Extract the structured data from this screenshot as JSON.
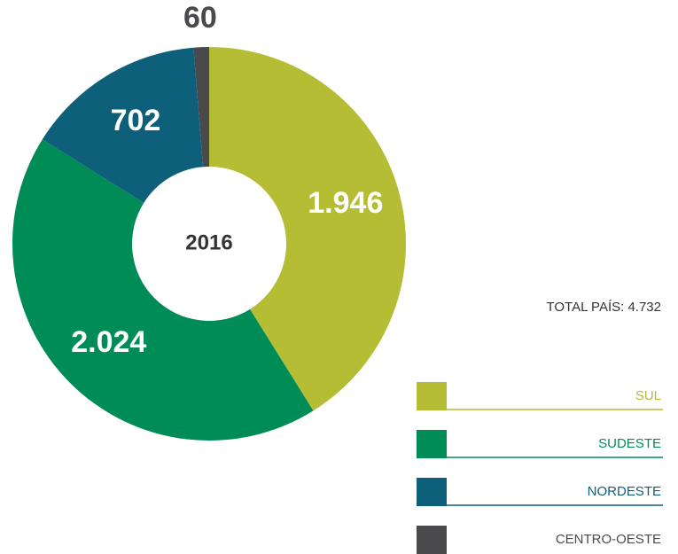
{
  "chart_data": {
    "type": "donut",
    "center_label": "2016",
    "annotation": "TOTAL PAÍS: 4.732",
    "categories": [
      "SUL",
      "SUDESTE",
      "NORDESTE",
      "CENTRO-OESTE"
    ],
    "values": [
      1946,
      2024,
      702,
      60
    ],
    "value_labels": [
      "1.946",
      "2.024",
      "702",
      "60"
    ],
    "colors": [
      "#b5bd35",
      "#008c56",
      "#0d5f7a",
      "#4a4a4d"
    ],
    "legend": "bottom-right"
  }
}
